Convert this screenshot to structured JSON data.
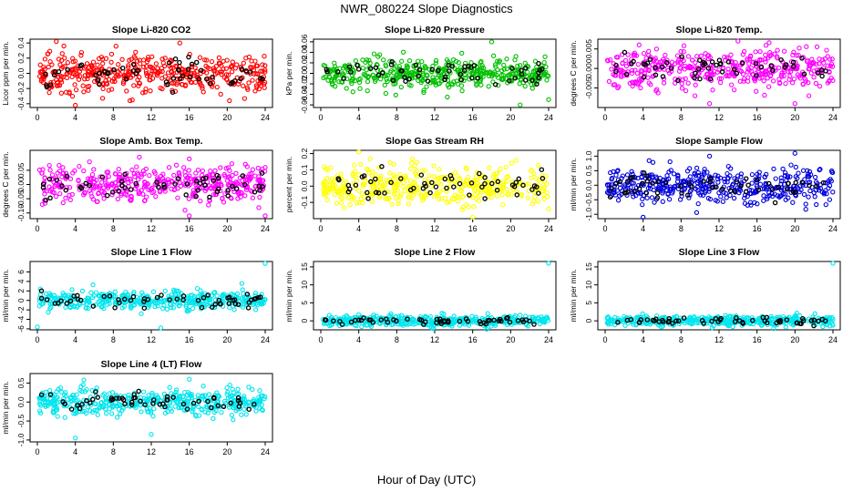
{
  "figure": {
    "title": "NWR_080224  Slope Diagnostics",
    "xlabel": "Hour of Day (UTC)"
  },
  "chart_data": [
    {
      "type": "scatter",
      "title": "Slope Li-820 CO2",
      "ylabel": "Licor ppm per min.",
      "color": "#ff0000",
      "highlight_color": "#000000",
      "xlim": [
        0,
        24
      ],
      "ylim": [
        -0.45,
        0.45
      ],
      "xticks": [
        0,
        4,
        8,
        12,
        16,
        20,
        24
      ],
      "yticks": [
        -0.4,
        -0.2,
        0.0,
        0.2,
        0.4
      ],
      "ytick_labels": [
        "-0.4",
        "-0.2",
        "0.0",
        "0.2",
        "0.4"
      ],
      "spread": 0.12,
      "outliers": [
        [
          2,
          0.42
        ],
        [
          4,
          -0.42
        ],
        [
          10,
          -0.35
        ],
        [
          15,
          0.4
        ]
      ]
    },
    {
      "type": "scatter",
      "title": "Slope Li-820 Pressure",
      "ylabel": "kPa per min.",
      "color": "#00c000",
      "highlight_color": "#000000",
      "xlim": [
        0,
        24
      ],
      "ylim": [
        -0.065,
        0.065
      ],
      "xticks": [
        0,
        4,
        8,
        12,
        16,
        20,
        24
      ],
      "yticks": [
        -0.06,
        -0.04,
        -0.02,
        0.0,
        0.02,
        0.04,
        0.06
      ],
      "ytick_labels": [
        "-0.06",
        "-0.04",
        "-0.02",
        "0.00",
        "0.02",
        "0.04",
        "0.06"
      ],
      "spread": 0.015,
      "outliers": [
        [
          21,
          -0.06
        ],
        [
          24,
          -0.05
        ],
        [
          18,
          0.06
        ]
      ]
    },
    {
      "type": "scatter",
      "title": "Slope Li-820 Temp.",
      "ylabel": "degrees C per min.",
      "color": "#ff00ff",
      "highlight_color": "#000000",
      "xlim": [
        0,
        24
      ],
      "ylim": [
        -0.01,
        0.0075
      ],
      "xticks": [
        0,
        4,
        8,
        12,
        16,
        20,
        24
      ],
      "yticks": [
        -0.005,
        0.0,
        0.005
      ],
      "ytick_labels": [
        "-0.005",
        "0.000",
        "0.005"
      ],
      "spread": 0.0025,
      "outliers": [
        [
          14,
          0.007
        ],
        [
          11,
          -0.009
        ],
        [
          20,
          -0.009
        ]
      ]
    },
    {
      "type": "scatter",
      "title": "Slope Amb. Box Temp.",
      "ylabel": "degrees C per min.",
      "color": "#ff00ff",
      "highlight_color": "#000000",
      "xlim": [
        0,
        24
      ],
      "ylim": [
        -0.12,
        0.12
      ],
      "xticks": [
        0,
        4,
        8,
        12,
        16,
        20,
        24
      ],
      "yticks": [
        -0.1,
        -0.05,
        0.0,
        0.05
      ],
      "ytick_labels": [
        "-0.10",
        "-0.05",
        "0.00",
        "0.05"
      ],
      "spread": 0.03,
      "outliers": [
        [
          16,
          0.09
        ],
        [
          16,
          -0.11
        ],
        [
          24,
          -0.11
        ],
        [
          24,
          0.06
        ]
      ]
    },
    {
      "type": "scatter",
      "title": "Slope Gas Stream RH",
      "ylabel": "percent per min.",
      "color": "#ffff00",
      "highlight_color": "#000000",
      "xlim": [
        0,
        24
      ],
      "ylim": [
        -0.2,
        0.22
      ],
      "xticks": [
        0,
        4,
        8,
        12,
        16,
        20,
        24
      ],
      "yticks": [
        -0.1,
        0.0,
        0.1,
        0.2
      ],
      "ytick_labels": [
        "-0.1",
        "0.0",
        "0.1",
        "0.2"
      ],
      "spread": 0.06,
      "outliers": [
        [
          4,
          0.21
        ],
        [
          16,
          -0.19
        ],
        [
          24,
          -0.14
        ]
      ]
    },
    {
      "type": "scatter",
      "title": "Slope Sample Flow",
      "ylabel": "ml/min per min.",
      "color": "#0000dd",
      "highlight_color": "#000000",
      "xlim": [
        0,
        24
      ],
      "ylim": [
        -1.15,
        1.2
      ],
      "xticks": [
        0,
        4,
        8,
        12,
        16,
        20,
        24
      ],
      "yticks": [
        -1.0,
        -0.5,
        0.0,
        0.5,
        1.0
      ],
      "ytick_labels": [
        "-1.0",
        "-0.5",
        "0.0",
        "0.5",
        "1.0"
      ],
      "spread": 0.3,
      "outliers": [
        [
          4,
          -1.1
        ],
        [
          20,
          1.1
        ],
        [
          11,
          1.0
        ]
      ]
    },
    {
      "type": "scatter",
      "title": "Slope Line 1 Flow",
      "ylabel": "ml/min per min.",
      "color": "#00e5ee",
      "highlight_color": "#000000",
      "xlim": [
        0,
        24
      ],
      "ylim": [
        -6.2,
        8.2
      ],
      "xticks": [
        0,
        4,
        8,
        12,
        16,
        20,
        24
      ],
      "yticks": [
        -6,
        -4,
        -2,
        0,
        2,
        4,
        6
      ],
      "ytick_labels": [
        "-6",
        "-4",
        "-2",
        "0",
        "2",
        "4",
        "6"
      ],
      "spread": 0.9,
      "outliers": [
        [
          24,
          7.8
        ],
        [
          13,
          -5.8
        ],
        [
          0,
          -5.6
        ]
      ]
    },
    {
      "type": "scatter",
      "title": "Slope Line 2 Flow",
      "ylabel": "ml/min per min.",
      "color": "#00e5ee",
      "highlight_color": "#000000",
      "xlim": [
        0,
        24
      ],
      "ylim": [
        -2.5,
        16.5
      ],
      "xticks": [
        0,
        4,
        8,
        12,
        16,
        20,
        24
      ],
      "yticks": [
        0,
        5,
        10,
        15
      ],
      "ytick_labels": [
        "0",
        "5",
        "10",
        "15"
      ],
      "spread": 0.7,
      "outliers": [
        [
          24,
          16.0
        ]
      ]
    },
    {
      "type": "scatter",
      "title": "Slope Line 3 Flow",
      "ylabel": "ml/min per min.",
      "color": "#00e5ee",
      "highlight_color": "#000000",
      "xlim": [
        0,
        24
      ],
      "ylim": [
        -2.5,
        16.5
      ],
      "xticks": [
        0,
        4,
        8,
        12,
        16,
        20,
        24
      ],
      "yticks": [
        0,
        5,
        10,
        15
      ],
      "ytick_labels": [
        "0",
        "5",
        "10",
        "15"
      ],
      "spread": 0.7,
      "outliers": [
        [
          24,
          16.0
        ]
      ]
    },
    {
      "type": "scatter",
      "title": "Slope Line 4 (LT) Flow",
      "ylabel": "ml/min per min.",
      "color": "#00e5ee",
      "highlight_color": "#000000",
      "xlim": [
        0,
        24
      ],
      "ylim": [
        -1.05,
        0.75
      ],
      "xticks": [
        0,
        4,
        8,
        12,
        16,
        20,
        24
      ],
      "yticks": [
        -1.0,
        -0.5,
        0.0,
        0.5
      ],
      "ytick_labels": [
        "-1.0",
        "-0.5",
        "0.0",
        "0.5"
      ],
      "spread": 0.17,
      "outliers": [
        [
          4,
          -0.95
        ],
        [
          12,
          -0.85
        ],
        [
          16,
          0.6
        ]
      ]
    }
  ]
}
